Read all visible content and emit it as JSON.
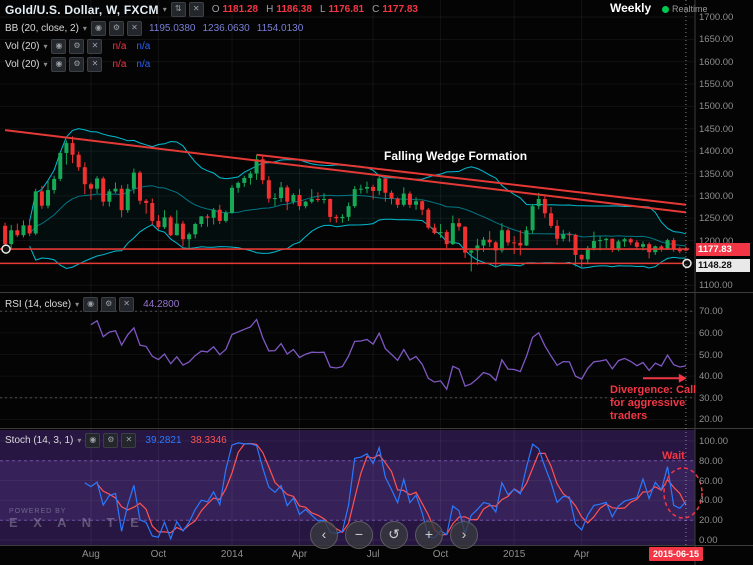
{
  "header": {
    "symbol": "Gold/U.S. Dollar, W, FXCM",
    "ohlc": {
      "o_label": "O",
      "o": "1181.28",
      "h_label": "H",
      "h": "1186.38",
      "l_label": "L",
      "l": "1176.81",
      "c_label": "C",
      "c": "1177.83"
    },
    "weekly_label": "Weekly",
    "realtime_label": "Realtime"
  },
  "icons": {
    "caret": "▾",
    "eye": "◉",
    "gear": "⚙",
    "close": "✕",
    "arrows": "⇅"
  },
  "indicators": {
    "bb": {
      "label": "BB (20, close, 2)",
      "values": [
        "1195.0380",
        "1236.0630",
        "1154.0130"
      ]
    },
    "vol1": {
      "label": "Vol (20)",
      "na1": "n/a",
      "na2": "n/a"
    },
    "vol2": {
      "label": "Vol (20)",
      "na1": "n/a",
      "na2": "n/a"
    },
    "rsi": {
      "label": "RSI (14, close)",
      "value": "44.2800"
    },
    "stoch": {
      "label": "Stoch (14, 3, 1)",
      "k": "39.2821",
      "d": "38.3346"
    }
  },
  "annotations": {
    "wedge": "Falling Wedge Formation",
    "divergence_line1": "Divergence: Call",
    "divergence_line2": "for aggressive",
    "divergence_line3": "traders",
    "wait": "Wait"
  },
  "price_axis": {
    "labels": [
      "1700.00",
      "1650.00",
      "1600.00",
      "1550.00",
      "1500.00",
      "1450.00",
      "1400.00",
      "1350.00",
      "1300.00",
      "1250.00",
      "1200.00",
      "1150.00",
      "1100.00"
    ],
    "current_badge": "1177.83",
    "line_badge": "1148.28"
  },
  "rsi_axis": {
    "labels": [
      "70.00",
      "60.00",
      "50.00",
      "40.00",
      "30.00",
      "20.00"
    ]
  },
  "stoch_axis": {
    "labels": [
      "100.00",
      "80.00",
      "60.00",
      "40.00",
      "20.00",
      "0.00"
    ]
  },
  "time_axis": {
    "labels": [
      {
        "text": "Aug",
        "i": 14
      },
      {
        "text": "Oct",
        "i": 25
      },
      {
        "text": "2014",
        "i": 37
      },
      {
        "text": "Apr",
        "i": 48
      },
      {
        "text": "Jul",
        "i": 60
      },
      {
        "text": "Oct",
        "i": 71
      },
      {
        "text": "2015",
        "i": 83
      },
      {
        "text": "Apr",
        "i": 94
      }
    ],
    "date_badge": "2015-06-15"
  },
  "watermark": {
    "small": "POWERED BY",
    "brand": "E X A N T E"
  },
  "toolbar": {
    "buttons": [
      {
        "name": "scroll-left-button",
        "glyph": "‹"
      },
      {
        "name": "zoom-out-button",
        "glyph": "−"
      },
      {
        "name": "reset-zoom-button",
        "glyph": "↺"
      },
      {
        "name": "zoom-in-button",
        "glyph": "+"
      },
      {
        "name": "scroll-right-button",
        "glyph": "›"
      }
    ]
  },
  "colors": {
    "up": "#18a957",
    "down": "#f23030",
    "bb": "#00bcd4",
    "bb_fill": "rgba(0,190,220,0.05)",
    "rsi": "#7E57C2",
    "stoch_k": "#2979ff",
    "stoch_d": "#ff5252",
    "trend": "#e53935",
    "badge_current": "#f23645",
    "grid": "rgba(255,255,255,0.06)"
  },
  "chart_data": {
    "type": "candlestick",
    "symbol": "Gold/U.S. Dollar",
    "timeframe": "W",
    "exchange": "FXCM",
    "price_range": [
      1085,
      1738
    ],
    "last_bar": {
      "open": 1181.28,
      "high": 1186.38,
      "low": 1176.81,
      "close": 1177.83,
      "date": "2015-06-15"
    },
    "overlays": {
      "bollinger": {
        "period": 20,
        "stdev": 2,
        "basis": 1195.038,
        "upper": 1236.063,
        "lower": 1154.013
      }
    },
    "panes": [
      {
        "type": "rsi",
        "period": 14,
        "value": 44.28,
        "levels": [
          30,
          70
        ]
      },
      {
        "type": "stoch",
        "k": 14,
        "d": 3,
        "smooth": 1,
        "k_value": 39.2821,
        "d_value": 38.3346,
        "levels": [
          20,
          80
        ]
      }
    ],
    "trendlines": [
      {
        "from": {
          "i": 0,
          "p": 1447
        },
        "to": {
          "i": 111,
          "p": 1263
        }
      },
      {
        "from": {
          "i": 41,
          "p": 1392
        },
        "to": {
          "i": 111,
          "p": 1280
        }
      }
    ],
    "hlines": [
      {
        "p": 1181
      },
      {
        "p": 1149
      }
    ],
    "candles": [
      [
        1233,
        1240,
        1180,
        1192
      ],
      [
        1192,
        1235,
        1179,
        1223
      ],
      [
        1223,
        1238,
        1208,
        1212
      ],
      [
        1212,
        1245,
        1207,
        1234
      ],
      [
        1234,
        1248,
        1210,
        1216
      ],
      [
        1216,
        1316,
        1212,
        1310
      ],
      [
        1310,
        1322,
        1271,
        1278
      ],
      [
        1278,
        1334,
        1272,
        1313
      ],
      [
        1313,
        1345,
        1305,
        1338
      ],
      [
        1338,
        1398,
        1333,
        1396
      ],
      [
        1396,
        1424,
        1370,
        1418
      ],
      [
        1418,
        1433,
        1373,
        1392
      ],
      [
        1392,
        1399,
        1356,
        1364
      ],
      [
        1364,
        1375,
        1304,
        1326
      ],
      [
        1326,
        1330,
        1291,
        1316
      ],
      [
        1316,
        1344,
        1306,
        1339
      ],
      [
        1339,
        1343,
        1277,
        1287
      ],
      [
        1287,
        1315,
        1276,
        1310
      ],
      [
        1310,
        1330,
        1306,
        1316
      ],
      [
        1316,
        1324,
        1252,
        1268
      ],
      [
        1268,
        1326,
        1262,
        1316
      ],
      [
        1316,
        1361,
        1305,
        1352
      ],
      [
        1352,
        1356,
        1281,
        1289
      ],
      [
        1289,
        1293,
        1260,
        1284
      ],
      [
        1284,
        1294,
        1236,
        1244
      ],
      [
        1244,
        1257,
        1225,
        1230
      ],
      [
        1230,
        1268,
        1226,
        1252
      ],
      [
        1252,
        1256,
        1210,
        1212
      ],
      [
        1212,
        1268,
        1211,
        1238
      ],
      [
        1238,
        1244,
        1187,
        1203
      ],
      [
        1203,
        1218,
        1182,
        1214
      ],
      [
        1214,
        1240,
        1205,
        1237
      ],
      [
        1237,
        1255,
        1230,
        1254
      ],
      [
        1254,
        1259,
        1231,
        1251
      ],
      [
        1251,
        1273,
        1236,
        1269
      ],
      [
        1269,
        1280,
        1237,
        1244
      ],
      [
        1244,
        1267,
        1240,
        1262
      ],
      [
        1262,
        1324,
        1260,
        1318
      ],
      [
        1318,
        1332,
        1307,
        1329
      ],
      [
        1329,
        1345,
        1320,
        1340
      ],
      [
        1340,
        1355,
        1325,
        1350
      ],
      [
        1350,
        1392,
        1336,
        1382
      ],
      [
        1382,
        1388,
        1326,
        1335
      ],
      [
        1335,
        1344,
        1285,
        1294
      ],
      [
        1294,
        1306,
        1277,
        1295
      ],
      [
        1295,
        1331,
        1286,
        1319
      ],
      [
        1319,
        1324,
        1268,
        1287
      ],
      [
        1287,
        1306,
        1281,
        1302
      ],
      [
        1302,
        1315,
        1268,
        1277
      ],
      [
        1277,
        1289,
        1272,
        1287
      ],
      [
        1287,
        1315,
        1283,
        1293
      ],
      [
        1293,
        1308,
        1286,
        1292
      ],
      [
        1292,
        1306,
        1283,
        1293
      ],
      [
        1293,
        1294,
        1241,
        1253
      ],
      [
        1253,
        1258,
        1240,
        1250
      ],
      [
        1250,
        1259,
        1240,
        1253
      ],
      [
        1253,
        1285,
        1244,
        1277
      ],
      [
        1277,
        1322,
        1273,
        1315
      ],
      [
        1315,
        1325,
        1305,
        1316
      ],
      [
        1316,
        1332,
        1306,
        1320
      ],
      [
        1320,
        1325,
        1292,
        1311
      ],
      [
        1311,
        1346,
        1302,
        1339
      ],
      [
        1339,
        1341,
        1287,
        1307
      ],
      [
        1307,
        1312,
        1281,
        1294
      ],
      [
        1294,
        1297,
        1273,
        1280
      ],
      [
        1280,
        1319,
        1276,
        1305
      ],
      [
        1305,
        1310,
        1273,
        1280
      ],
      [
        1280,
        1297,
        1269,
        1288
      ],
      [
        1288,
        1290,
        1257,
        1269
      ],
      [
        1269,
        1273,
        1225,
        1229
      ],
      [
        1229,
        1238,
        1214,
        1217
      ],
      [
        1217,
        1237,
        1206,
        1219
      ],
      [
        1219,
        1224,
        1183,
        1192
      ],
      [
        1192,
        1256,
        1190,
        1239
      ],
      [
        1239,
        1250,
        1222,
        1231
      ],
      [
        1231,
        1232,
        1161,
        1173
      ],
      [
        1173,
        1179,
        1131,
        1178
      ],
      [
        1178,
        1204,
        1146,
        1189
      ],
      [
        1189,
        1208,
        1175,
        1202
      ],
      [
        1202,
        1221,
        1186,
        1196
      ],
      [
        1196,
        1199,
        1141,
        1178
      ],
      [
        1178,
        1239,
        1173,
        1223
      ],
      [
        1223,
        1227,
        1189,
        1196
      ],
      [
        1196,
        1210,
        1170,
        1195
      ],
      [
        1195,
        1223,
        1167,
        1189
      ],
      [
        1189,
        1232,
        1188,
        1223
      ],
      [
        1223,
        1282,
        1216,
        1277
      ],
      [
        1277,
        1307,
        1270,
        1293
      ],
      [
        1293,
        1299,
        1251,
        1261
      ],
      [
        1261,
        1275,
        1228,
        1233
      ],
      [
        1233,
        1246,
        1190,
        1204
      ],
      [
        1204,
        1224,
        1198,
        1214
      ],
      [
        1214,
        1220,
        1197,
        1213
      ],
      [
        1213,
        1215,
        1142,
        1168
      ],
      [
        1168,
        1169,
        1141,
        1158
      ],
      [
        1158,
        1188,
        1147,
        1183
      ],
      [
        1183,
        1220,
        1178,
        1199
      ],
      [
        1199,
        1210,
        1178,
        1201
      ],
      [
        1201,
        1206,
        1183,
        1204
      ],
      [
        1204,
        1205,
        1174,
        1180
      ],
      [
        1180,
        1202,
        1176,
        1198
      ],
      [
        1198,
        1206,
        1186,
        1203
      ],
      [
        1203,
        1206,
        1190,
        1196
      ],
      [
        1196,
        1201,
        1181,
        1186
      ],
      [
        1186,
        1198,
        1178,
        1192
      ],
      [
        1192,
        1196,
        1160,
        1174
      ],
      [
        1174,
        1189,
        1168,
        1187
      ],
      [
        1187,
        1190,
        1175,
        1181
      ],
      [
        1181,
        1204,
        1179,
        1201
      ],
      [
        1201,
        1206,
        1175,
        1181
      ],
      [
        1181,
        1186,
        1172,
        1176
      ],
      [
        1181.28,
        1186.38,
        1176.81,
        1177.83
      ]
    ]
  }
}
